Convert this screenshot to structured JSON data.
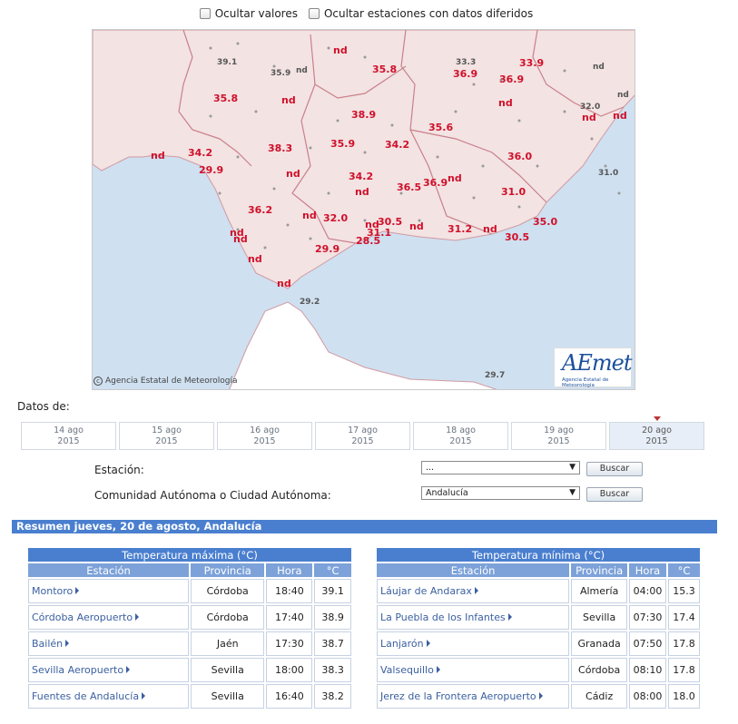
{
  "filters": {
    "hide_values": "Ocultar valores",
    "hide_stations": "Ocultar estaciones con datos diferidos"
  },
  "map": {
    "credit": "Agencia Estatal de Meteorología",
    "logo_word": "AEmet",
    "logo_sub": "Agencia Estatal de Meteorología",
    "colors": {
      "value_red": "#d0102a",
      "sea": "#cfe0f0",
      "land": "#f3e3e3",
      "border": "#c9808a"
    },
    "labels": [
      {
        "t": "39.1",
        "g": true
      },
      {
        "t": "35.9",
        "g": true
      },
      {
        "t": "nd",
        "g": true
      },
      {
        "t": "nd"
      },
      {
        "t": "35.8"
      },
      {
        "t": "33.3",
        "g": true
      },
      {
        "t": "36.9"
      },
      {
        "t": "33.9"
      },
      {
        "t": "nd",
        "g": true
      },
      {
        "t": "35.8"
      },
      {
        "t": "nd"
      },
      {
        "t": "36.9"
      },
      {
        "t": "nd",
        "g": true
      },
      {
        "t": "nd"
      },
      {
        "t": "38.9"
      },
      {
        "t": "nd"
      },
      {
        "t": "35.6"
      },
      {
        "t": "32.0",
        "g": true
      },
      {
        "t": "34.2"
      },
      {
        "t": "38.3"
      },
      {
        "t": "35.9"
      },
      {
        "t": "34.2"
      },
      {
        "t": "36.0"
      },
      {
        "t": "nd"
      },
      {
        "t": "29.9"
      },
      {
        "t": "nd"
      },
      {
        "t": "34.2"
      },
      {
        "t": "nd"
      },
      {
        "t": "31.0",
        "g": true
      },
      {
        "t": "nd"
      },
      {
        "t": "36.5"
      },
      {
        "t": "36.9"
      },
      {
        "t": "nd"
      },
      {
        "t": "31.0"
      },
      {
        "t": "36.2"
      },
      {
        "t": "nd"
      },
      {
        "t": "32.0"
      },
      {
        "t": "nd"
      },
      {
        "t": "30.5"
      },
      {
        "t": "35.0"
      },
      {
        "t": "31.1"
      },
      {
        "t": "nd"
      },
      {
        "t": "31.2"
      },
      {
        "t": "nd"
      },
      {
        "t": "30.5"
      },
      {
        "t": "nd"
      },
      {
        "t": "nd"
      },
      {
        "t": "28.5"
      },
      {
        "t": "29.9"
      },
      {
        "t": "nd"
      },
      {
        "t": "nd"
      },
      {
        "t": "29.2",
        "g": true
      },
      {
        "t": "29.7",
        "g": true
      }
    ]
  },
  "dates_label": "Datos de:",
  "dates": [
    {
      "day": "14 ago",
      "year": "2015"
    },
    {
      "day": "15 ago",
      "year": "2015"
    },
    {
      "day": "16 ago",
      "year": "2015"
    },
    {
      "day": "17 ago",
      "year": "2015"
    },
    {
      "day": "18 ago",
      "year": "2015"
    },
    {
      "day": "19 ago",
      "year": "2015"
    },
    {
      "day": "20 ago",
      "year": "2015",
      "active": true
    }
  ],
  "form": {
    "station_label": "Estación:",
    "station_value": "...",
    "region_label": "Comunidad Autónoma o Ciudad Autónoma:",
    "region_value": "Andalucía",
    "search_label": "Buscar"
  },
  "summary": "Resumen jueves, 20 de agosto, Andalucía",
  "max_table": {
    "title": "Temperatura máxima (°C)",
    "headers": [
      "Estación",
      "Provincia",
      "Hora",
      "°C"
    ],
    "rows": [
      [
        "Montoro",
        "Córdoba",
        "18:40",
        "39.1"
      ],
      [
        "Córdoba Aeropuerto",
        "Córdoba",
        "17:40",
        "38.9"
      ],
      [
        "Bailén",
        "Jaén",
        "17:30",
        "38.7"
      ],
      [
        "Sevilla Aeropuerto",
        "Sevilla",
        "18:00",
        "38.3"
      ],
      [
        "Fuentes de Andalucía",
        "Sevilla",
        "16:40",
        "38.2"
      ]
    ]
  },
  "min_table": {
    "title": "Temperatura mínima (°C)",
    "headers": [
      "Estación",
      "Provincia",
      "Hora",
      "°C"
    ],
    "rows": [
      [
        "Láujar de Andarax",
        "Almería",
        "04:00",
        "15.3"
      ],
      [
        "La Puebla de los Infantes",
        "Sevilla",
        "07:30",
        "17.4"
      ],
      [
        "Lanjarón",
        "Granada",
        "07:50",
        "17.8"
      ],
      [
        "Valsequillo",
        "Córdoba",
        "08:10",
        "17.8"
      ],
      [
        "Jerez de la Frontera Aeropuerto",
        "Cádiz",
        "08:00",
        "18.0"
      ]
    ]
  }
}
